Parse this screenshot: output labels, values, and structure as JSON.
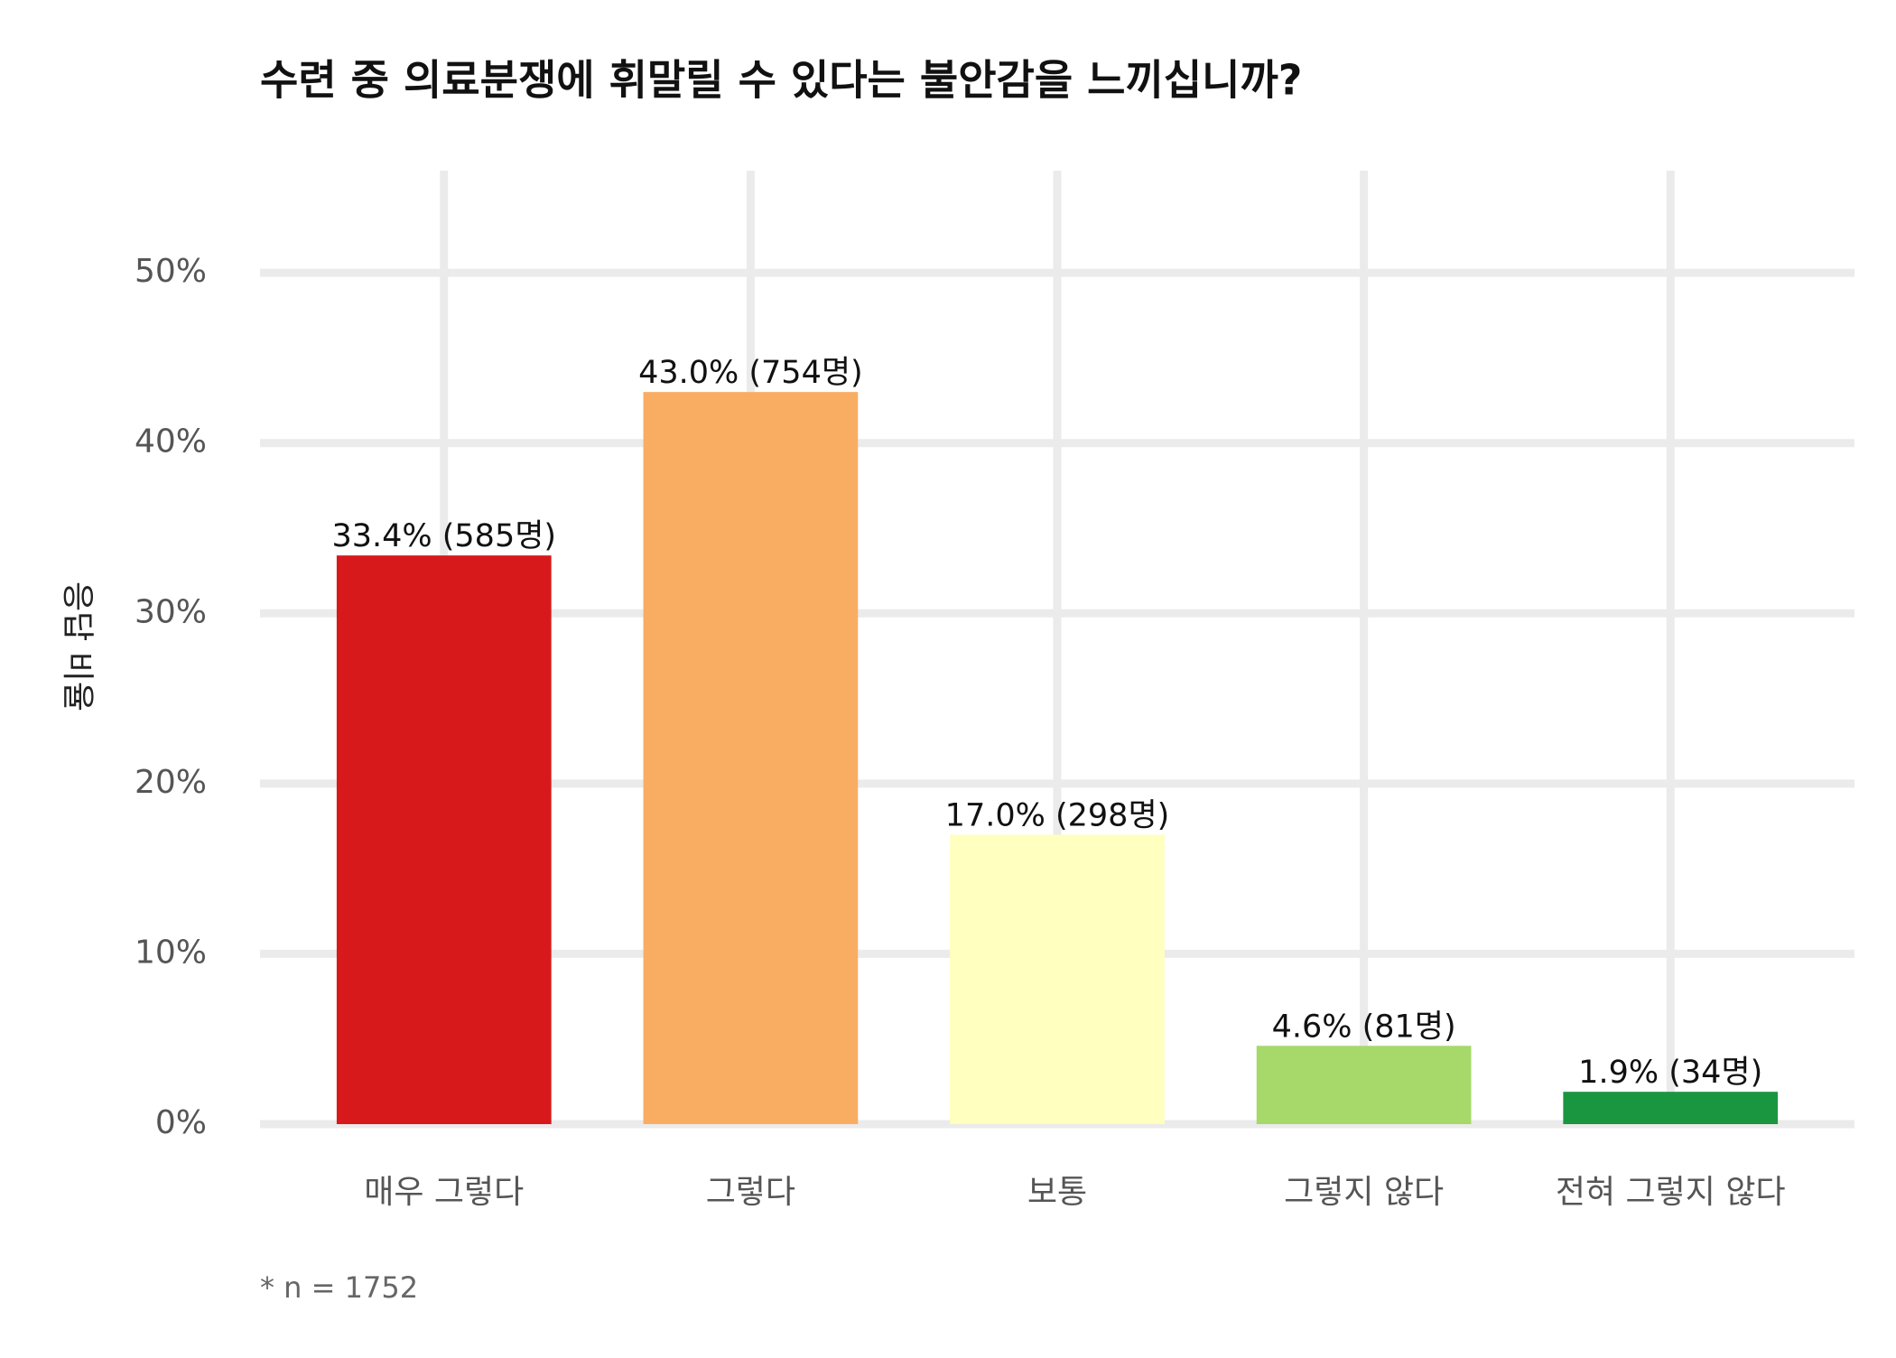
{
  "chart_data": {
    "type": "bar",
    "title": "수련 중 의료분쟁에 휘말릴 수 있다는 불안감을 느끼십니까?",
    "y_label": "응답 비율",
    "footnote": "* n = 1752",
    "categories": [
      "매우 그렇다",
      "그렇다",
      "보통",
      "그렇지 않다",
      "전혀 그렇지 않다"
    ],
    "values": [
      33.4,
      43.0,
      17.0,
      4.6,
      1.9
    ],
    "value_labels": [
      "33.4% (585명)",
      "43.0% (754명)",
      "17.0% (298명)",
      "4.6% (81명)",
      "1.9% (34명)"
    ],
    "colors": [
      "#d7191c",
      "#f9ad63",
      "#ffffbf",
      "#a6d96a",
      "#1a9641"
    ],
    "ylim": [
      0,
      56
    ],
    "yticks": [
      {
        "value": 0,
        "label": "0%"
      },
      {
        "value": 10,
        "label": "10%"
      },
      {
        "value": 20,
        "label": "20%"
      },
      {
        "value": 30,
        "label": "30%"
      },
      {
        "value": 40,
        "label": "40%"
      },
      {
        "value": 50,
        "label": "50%"
      }
    ],
    "grid": true
  }
}
